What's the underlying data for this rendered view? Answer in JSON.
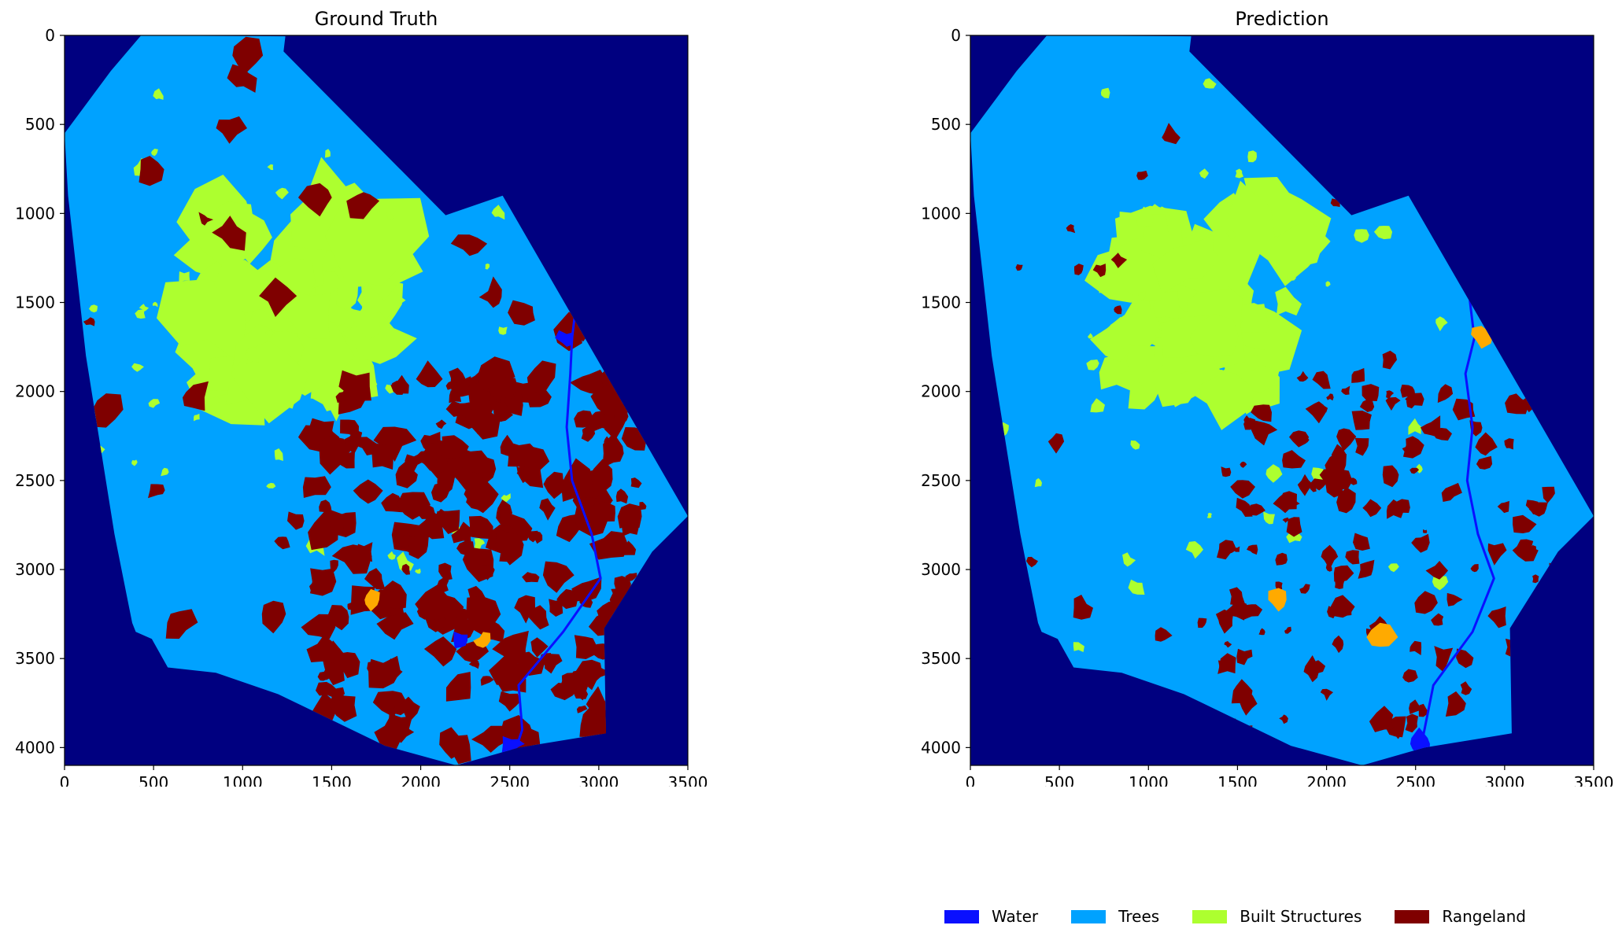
{
  "figure": {
    "panels": [
      {
        "title": "Ground Truth"
      },
      {
        "title": "Prediction"
      }
    ],
    "legend": [
      {
        "label": "Water",
        "color": "#0a10ff"
      },
      {
        "label": "Trees",
        "color": "#00a2ff"
      },
      {
        "label": "Built Structures",
        "color": "#adff2f"
      },
      {
        "label": "Rangeland",
        "color": "#7f0000"
      }
    ],
    "background_color": "#000080",
    "other_class_color": "#ffaa00"
  },
  "axes": {
    "x_ticks": [
      0,
      500,
      1000,
      1500,
      2000,
      2500,
      3000,
      3500
    ],
    "y_ticks": [
      0,
      500,
      1000,
      1500,
      2000,
      2500,
      3000,
      3500,
      4000
    ],
    "x_range": [
      0,
      3500
    ],
    "y_range": [
      0,
      4100
    ]
  }
}
